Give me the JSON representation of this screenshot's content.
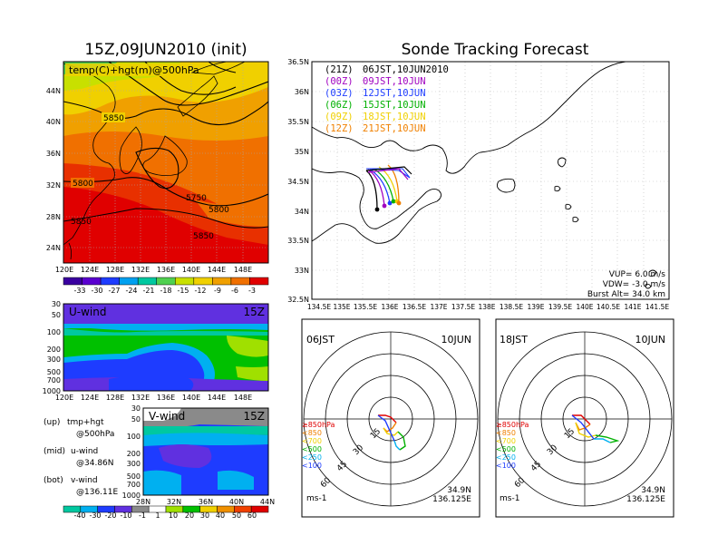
{
  "left_panel": {
    "title": "15Z,09JUN2010 (init)",
    "top_map": {
      "label": "temp(C)+hgt(m)@500hPa",
      "lat_ticks": [
        "44N",
        "40N",
        "36N",
        "32N",
        "28N",
        "24N"
      ],
      "lon_ticks": [
        "120E",
        "124E",
        "128E",
        "132E",
        "136E",
        "140E",
        "144E",
        "148E"
      ],
      "contour_labels": [
        "5850",
        "5800",
        "5750",
        "5800",
        "5850",
        "5850"
      ],
      "colorbar_labels": [
        "-33",
        "-30",
        "-27",
        "-24",
        "-21",
        "-18",
        "-15",
        "-12",
        "-9",
        "-6",
        "-3"
      ]
    },
    "u_wind": {
      "label": "U-wind",
      "time": "15Z",
      "p_ticks": [
        "30",
        "50",
        "100",
        "200",
        "300",
        "500",
        "700",
        "1000"
      ],
      "lon_ticks": [
        "120E",
        "124E",
        "128E",
        "132E",
        "136E",
        "140E",
        "144E",
        "148E"
      ]
    },
    "v_wind": {
      "label": "V-wind",
      "time": "15Z",
      "p_ticks": [
        "30",
        "50",
        "100",
        "200",
        "300",
        "500",
        "700",
        "1000"
      ],
      "lat_ticks": [
        "28N",
        "32N",
        "36N",
        "40N",
        "44N"
      ],
      "colorbar_labels": [
        "-40",
        "-30",
        "-20",
        "-10",
        "-1",
        "1",
        "10",
        "20",
        "30",
        "40",
        "50",
        "60"
      ]
    },
    "legend": [
      {
        "key": "(up)",
        "line1": "tmp+hgt",
        "line2": "@500hPa"
      },
      {
        "key": "(mid)",
        "line1": "u-wind",
        "line2": "@34.86N"
      },
      {
        "key": "(bot)",
        "line1": "v-wind",
        "line2": "@136.11E"
      }
    ]
  },
  "right_panel": {
    "title": "Sonde Tracking Forecast",
    "map": {
      "lat_ticks": [
        "36.5N",
        "36N",
        "35.5N",
        "35N",
        "34.5N",
        "34N",
        "33.5N",
        "33N",
        "32.5N"
      ],
      "lon_ticks": [
        "134.5E",
        "135E",
        "135.5E",
        "136E",
        "136.5E",
        "137E",
        "137.5E",
        "138E",
        "138.5E",
        "139E",
        "139.5E",
        "140E",
        "140.5E",
        "141E",
        "141.5E"
      ],
      "launches": [
        {
          "code": "(21Z)",
          "time": "06JST,10JUN2010",
          "color": "#000000"
        },
        {
          "code": "(00Z)",
          "time": "09JST,10JUN",
          "color": "#a000c0"
        },
        {
          "code": "(03Z)",
          "time": "12JST,10JUN",
          "color": "#1e3cff"
        },
        {
          "code": "(06Z)",
          "time": "15JST,10JUN",
          "color": "#00b000"
        },
        {
          "code": "(09Z)",
          "time": "18JST,10JUN",
          "color": "#f0d000"
        },
        {
          "code": "(12Z)",
          "time": "21JST,10JUN",
          "color": "#f08000"
        }
      ],
      "vup": "VUP= 6.0 m/s",
      "vdw": "VDW= -3.0 m/s",
      "burst": "Burst Alt= 34.0 km"
    },
    "polar_left": {
      "time": "06JST",
      "date": "10JUN",
      "lat": "34.9N",
      "lon": "136.125E",
      "units": "ms-1",
      "ring_labels": [
        "15",
        "30",
        "45",
        "60"
      ]
    },
    "polar_right": {
      "time": "18JST",
      "date": "10JUN",
      "lat": "34.9N",
      "lon": "136.125E",
      "units": "ms-1",
      "ring_labels": [
        "15",
        "30",
        "45",
        "60"
      ]
    },
    "pressure_legend": [
      "≥850hPa",
      "<850",
      "<700",
      "<500",
      "<250",
      "<100"
    ],
    "pressure_colors": [
      "#e00000",
      "#f08000",
      "#f0d000",
      "#00b000",
      "#00b0f0",
      "#1e3cff"
    ]
  },
  "colors": {
    "temp_scale": [
      "#3a00a0",
      "#5a00d0",
      "#1e3cff",
      "#00a0f0",
      "#00c8a0",
      "#50d050",
      "#c8e000",
      "#f0d000",
      "#f0a000",
      "#f07000",
      "#e00000"
    ],
    "wind_scale": [
      "#00c8a0",
      "#00b0f0",
      "#1e3cff",
      "#6030e0",
      "#8a8a8a",
      "#ffffff",
      "#a0e000",
      "#00c000",
      "#f0d000",
      "#f09000",
      "#f04000",
      "#e00000"
    ]
  }
}
